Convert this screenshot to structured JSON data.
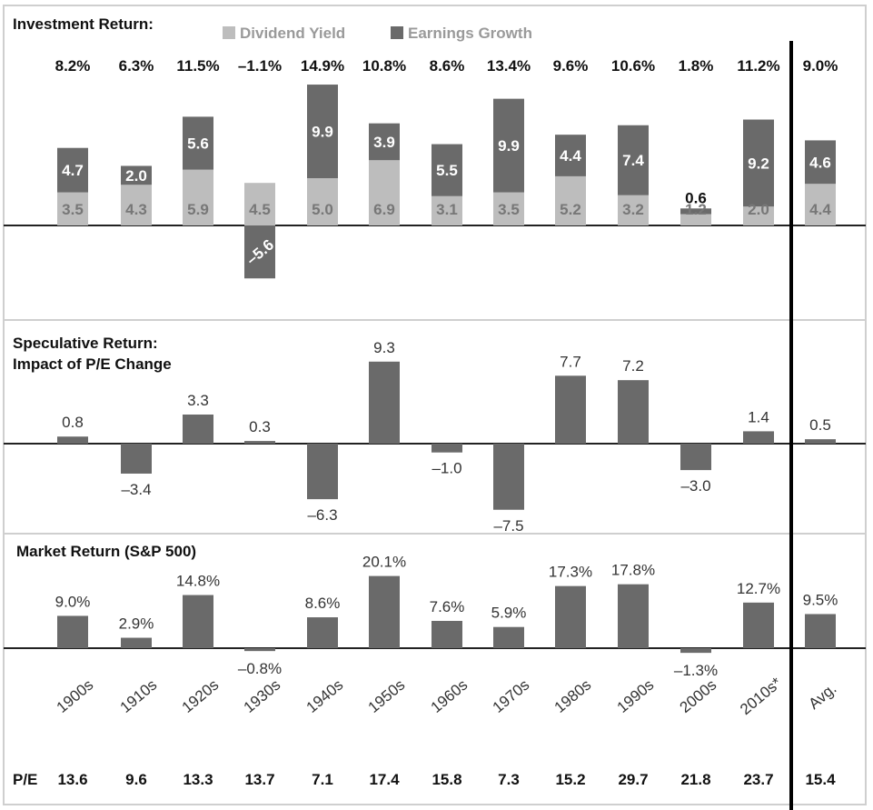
{
  "colors": {
    "dividend": "#bdbdbd",
    "earnings": "#6a6a6a",
    "bar": "#6a6a6a",
    "frame": "#cfcfcf",
    "divider": "#000000"
  },
  "categories": [
    "1900s",
    "1910s",
    "1920s",
    "1930s",
    "1940s",
    "1950s",
    "1960s",
    "1970s",
    "1980s",
    "1990s",
    "2000s",
    "2010s*",
    "Avg."
  ],
  "chart_data": [
    {
      "type": "bar",
      "stacked": true,
      "title": "Investment Return:",
      "legend": [
        "Dividend Yield",
        "Earnings Growth"
      ],
      "legend_position": "top",
      "categories": [
        "1900s",
        "1910s",
        "1920s",
        "1930s",
        "1940s",
        "1950s",
        "1960s",
        "1970s",
        "1980s",
        "1990s",
        "2000s",
        "2010s*",
        "Avg."
      ],
      "totals": [
        "8.2%",
        "6.3%",
        "11.5%",
        "–1.1%",
        "14.9%",
        "10.8%",
        "8.6%",
        "13.4%",
        "9.6%",
        "10.6%",
        "1.8%",
        "11.2%",
        "9.0%"
      ],
      "series": [
        {
          "name": "Dividend Yield",
          "values": [
            3.5,
            4.3,
            5.9,
            4.5,
            5.0,
            6.9,
            3.1,
            3.5,
            5.2,
            3.2,
            1.2,
            2.0,
            4.4
          ]
        },
        {
          "name": "Earnings Growth",
          "values": [
            4.7,
            2.0,
            5.6,
            -5.6,
            9.9,
            3.9,
            5.5,
            9.9,
            4.4,
            7.4,
            0.6,
            9.2,
            4.6
          ]
        }
      ],
      "ylim": [
        -6.6,
        16.5
      ],
      "grid": false
    },
    {
      "type": "bar",
      "title": "Speculative Return:",
      "subtitle": "Impact of P/E Change",
      "categories": [
        "1900s",
        "1910s",
        "1920s",
        "1930s",
        "1940s",
        "1950s",
        "1960s",
        "1970s",
        "1980s",
        "1990s",
        "2000s",
        "2010s*",
        "Avg."
      ],
      "values": [
        0.8,
        -3.4,
        3.3,
        0.3,
        -6.3,
        9.3,
        -1.0,
        -7.5,
        7.7,
        7.2,
        -3.0,
        1.4,
        0.5
      ],
      "labels": [
        "0.8",
        "–3.4",
        "3.3",
        "0.3",
        "–6.3",
        "9.3",
        "–1.0",
        "–7.5",
        "7.7",
        "7.2",
        "–3.0",
        "1.4",
        "0.5"
      ],
      "ylim": [
        -8.5,
        12.5
      ],
      "grid": false
    },
    {
      "type": "bar",
      "title": "Market Return (S&P 500)",
      "categories": [
        "1900s",
        "1910s",
        "1920s",
        "1930s",
        "1940s",
        "1950s",
        "1960s",
        "1970s",
        "1980s",
        "1990s",
        "2000s",
        "2010s*",
        "Avg."
      ],
      "values": [
        9.0,
        2.9,
        14.8,
        -0.8,
        8.6,
        20.1,
        7.6,
        5.9,
        17.3,
        17.8,
        -1.3,
        12.7,
        9.5
      ],
      "labels": [
        "9.0%",
        "2.9%",
        "14.8%",
        "–0.8%",
        "8.6%",
        "20.1%",
        "7.6%",
        "5.9%",
        "17.3%",
        "17.8%",
        "–1.3%",
        "12.7%",
        "9.5%"
      ],
      "ylim": [
        -4,
        26
      ],
      "grid": false
    }
  ],
  "pe": {
    "label": "P/E",
    "values": [
      "13.6",
      "9.6",
      "13.3",
      "13.7",
      "7.1",
      "17.4",
      "15.8",
      "7.3",
      "15.2",
      "29.7",
      "21.8",
      "23.7",
      "15.4"
    ]
  }
}
